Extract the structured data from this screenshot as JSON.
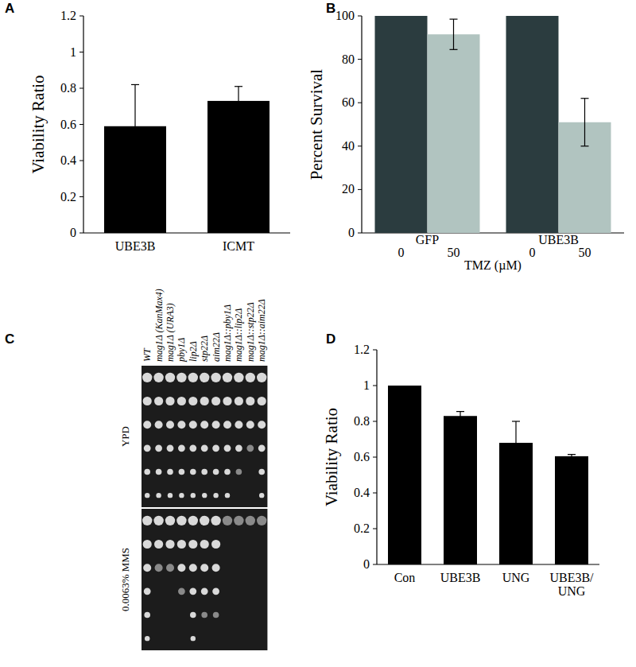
{
  "panel_labels": [
    "A",
    "B",
    "C",
    "D"
  ],
  "chart_data": [
    {
      "type": "bar",
      "y_label": "Viability Ratio",
      "categories": [
        "UBE3B",
        "ICMT"
      ],
      "values": [
        0.59,
        0.73
      ],
      "errors": [
        0.23,
        0.08
      ],
      "color": "#000000",
      "ylim": [
        0,
        1.2
      ],
      "yticks": [
        0,
        0.2,
        0.4,
        0.6,
        0.8,
        1,
        1.2
      ]
    },
    {
      "type": "bar",
      "y_label": "Percent Survival",
      "x_label": "TMZ (µM)",
      "categories": [
        "GFP",
        "UBE3B"
      ],
      "series": [
        {
          "name": "0",
          "color": "#2b3c3f",
          "values": [
            100,
            100
          ],
          "errors": [
            null,
            null
          ]
        },
        {
          "name": "50",
          "color": "#b1c4c0",
          "values": [
            91.5,
            51
          ],
          "errors": [
            7,
            11
          ]
        }
      ],
      "ylim": [
        0,
        100
      ],
      "yticks": [
        0,
        20,
        40,
        60,
        80,
        100
      ]
    },
    {
      "type": "bar",
      "y_label": "Viability Ratio",
      "categories": [
        "Con",
        "UBE3B",
        "UNG",
        "UBE3B/UNG"
      ],
      "values": [
        1,
        0.83,
        0.68,
        0.605
      ],
      "errors": [
        null,
        0.025,
        0.12,
        0.01
      ],
      "color": "#000000",
      "ylim": [
        0,
        1.2
      ],
      "yticks": [
        0,
        0.2,
        0.4,
        0.6,
        0.8,
        1,
        1.2
      ]
    }
  ],
  "spot_assay": {
    "strains": [
      "WT",
      "mag1Δ (KanMax4)",
      "mag1Δ (URA3)",
      "pby1Δ",
      "lip2Δ",
      "stp22Δ",
      "aim22Δ",
      "mag1Δ::pby1Δ",
      "mag1Δ::lip2Δ",
      "mag1Δ::stp22Δ",
      "mag1Δ::aim22Δ"
    ],
    "plates": [
      {
        "name": "YPD",
        "growth": [
          6,
          6,
          6,
          6,
          6,
          6,
          6,
          6,
          5,
          4,
          6
        ]
      },
      {
        "name": "0.0063% MMS",
        "growth": [
          6,
          3,
          3,
          4,
          6,
          5,
          5,
          1,
          1,
          1,
          1
        ]
      }
    ]
  }
}
